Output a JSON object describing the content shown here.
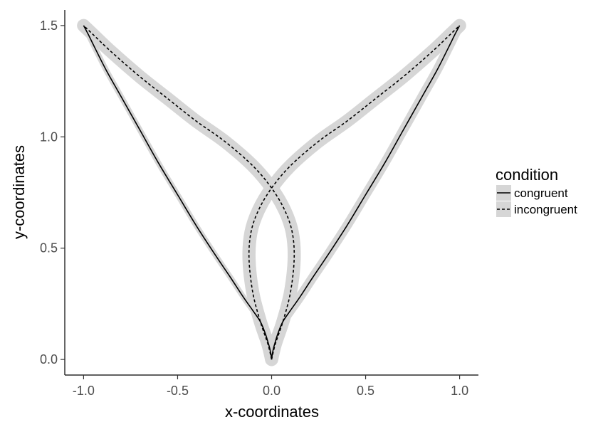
{
  "chart_data": {
    "type": "line",
    "xlabel": "x-coordinates",
    "ylabel": "y-coordinates",
    "xlim": [
      -1.1,
      1.1
    ],
    "ylim": [
      -0.07,
      1.57
    ],
    "x_ticks": [
      -1.0,
      -0.5,
      0.0,
      0.5,
      1.0
    ],
    "x_tick_labels": [
      "-1.0",
      "-0.5",
      "0.0",
      "0.5",
      "1.0"
    ],
    "y_ticks": [
      0.0,
      0.5,
      1.0,
      1.5
    ],
    "y_tick_labels": [
      "0.0",
      "0.5",
      "1.0",
      "1.5"
    ],
    "grid": false,
    "legend": {
      "title": "condition",
      "position": "right",
      "entries": [
        {
          "label": "congruent",
          "linestyle": "solid"
        },
        {
          "label": "incongruent",
          "linestyle": "dashed"
        }
      ]
    },
    "band_color": "#d6d6d6",
    "line_color": "#000000",
    "series": [
      {
        "condition": "congruent",
        "linestyle": "solid",
        "band_width": 0.015,
        "points": [
          [
            0.0,
            0.0
          ],
          [
            -0.003,
            0.02
          ],
          [
            -0.01,
            0.05
          ],
          [
            -0.02,
            0.08
          ],
          [
            -0.035,
            0.12
          ],
          [
            -0.06,
            0.17
          ],
          [
            -0.1,
            0.22
          ],
          [
            -0.15,
            0.28
          ],
          [
            -0.22,
            0.37
          ],
          [
            -0.3,
            0.47
          ],
          [
            -0.4,
            0.6
          ],
          [
            -0.5,
            0.74
          ],
          [
            -0.6,
            0.88
          ],
          [
            -0.7,
            1.03
          ],
          [
            -0.8,
            1.18
          ],
          [
            -0.88,
            1.3
          ],
          [
            -0.94,
            1.4
          ],
          [
            -0.975,
            1.46
          ],
          [
            -1.0,
            1.5
          ]
        ]
      },
      {
        "condition": "congruent",
        "linestyle": "solid",
        "band_width": 0.025,
        "points": [
          [
            0.0,
            0.0
          ],
          [
            0.003,
            0.02
          ],
          [
            0.01,
            0.05
          ],
          [
            0.02,
            0.08
          ],
          [
            0.035,
            0.12
          ],
          [
            0.06,
            0.17
          ],
          [
            0.1,
            0.22
          ],
          [
            0.15,
            0.28
          ],
          [
            0.22,
            0.37
          ],
          [
            0.3,
            0.47
          ],
          [
            0.4,
            0.6
          ],
          [
            0.5,
            0.74
          ],
          [
            0.6,
            0.88
          ],
          [
            0.7,
            1.03
          ],
          [
            0.8,
            1.18
          ],
          [
            0.88,
            1.3
          ],
          [
            0.94,
            1.4
          ],
          [
            0.975,
            1.46
          ],
          [
            1.0,
            1.5
          ]
        ]
      },
      {
        "condition": "incongruent",
        "linestyle": "dashed",
        "band_width": 0.035,
        "points": [
          [
            0.0,
            0.0
          ],
          [
            0.02,
            0.07
          ],
          [
            0.06,
            0.17
          ],
          [
            0.1,
            0.3
          ],
          [
            0.12,
            0.45
          ],
          [
            0.11,
            0.57
          ],
          [
            0.07,
            0.67
          ],
          [
            0.0,
            0.77
          ],
          [
            -0.1,
            0.87
          ],
          [
            -0.25,
            0.98
          ],
          [
            -0.4,
            1.07
          ],
          [
            -0.55,
            1.17
          ],
          [
            -0.7,
            1.27
          ],
          [
            -0.85,
            1.38
          ],
          [
            -0.95,
            1.46
          ],
          [
            -1.0,
            1.5
          ]
        ]
      },
      {
        "condition": "incongruent",
        "linestyle": "dashed",
        "band_width": 0.035,
        "points": [
          [
            0.0,
            0.0
          ],
          [
            -0.02,
            0.07
          ],
          [
            -0.06,
            0.17
          ],
          [
            -0.1,
            0.3
          ],
          [
            -0.12,
            0.45
          ],
          [
            -0.11,
            0.57
          ],
          [
            -0.07,
            0.67
          ],
          [
            0.0,
            0.77
          ],
          [
            0.1,
            0.87
          ],
          [
            0.25,
            0.98
          ],
          [
            0.4,
            1.07
          ],
          [
            0.55,
            1.17
          ],
          [
            0.7,
            1.27
          ],
          [
            0.85,
            1.38
          ],
          [
            0.95,
            1.46
          ],
          [
            1.0,
            1.5
          ]
        ]
      }
    ]
  }
}
